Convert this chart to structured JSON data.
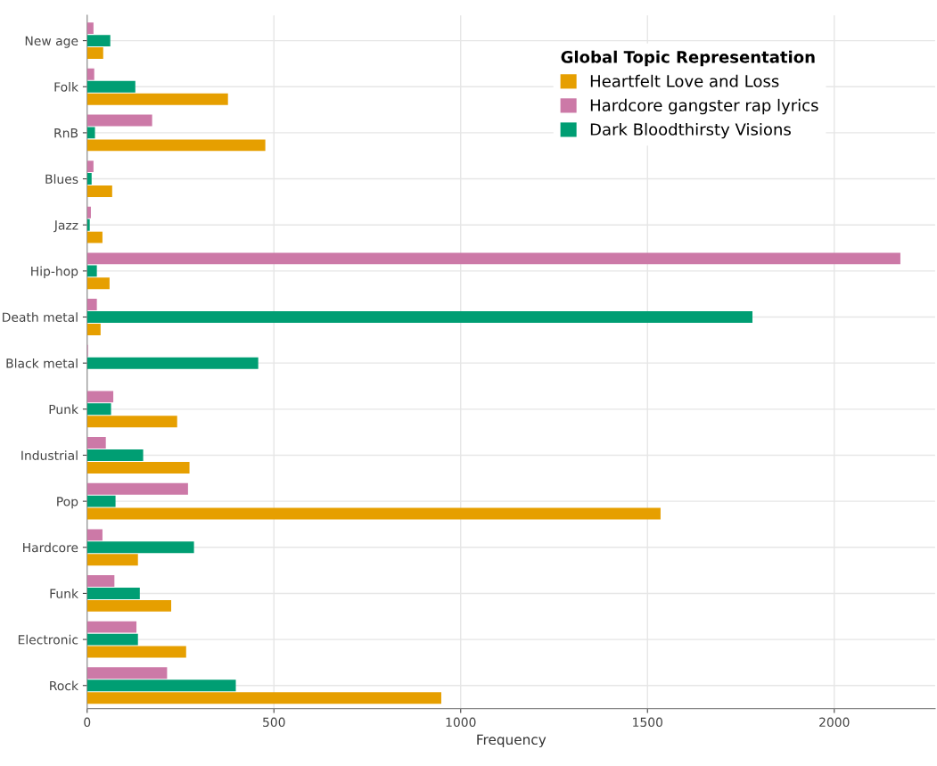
{
  "chart_data": {
    "type": "bar",
    "orientation": "horizontal",
    "xlabel": "Frequency",
    "legend_title": "Global Topic Representation",
    "categories": [
      "New age",
      "Folk",
      "RnB",
      "Blues",
      "Jazz",
      "Hip-hop",
      "Death metal",
      "Black metal",
      "Punk",
      "Industrial",
      "Pop",
      "Hardcore",
      "Funk",
      "Electronic",
      "Rock"
    ],
    "series": [
      {
        "name": "Heartfelt Love and Loss",
        "color": "#e69f00",
        "values": [
          43,
          377,
          477,
          67,
          41,
          60,
          36,
          0,
          241,
          274,
          1535,
          136,
          225,
          265,
          948
        ]
      },
      {
        "name": "Hardcore gangster rap lyrics",
        "color": "#cc79a7",
        "values": [
          17,
          19,
          174,
          17,
          10,
          2177,
          26,
          2,
          70,
          50,
          270,
          41,
          73,
          132,
          214
        ]
      },
      {
        "name": "Dark Bloodthirsty Visions",
        "color": "#009e73",
        "values": [
          62,
          129,
          21,
          12,
          7,
          26,
          1781,
          458,
          64,
          150,
          76,
          286,
          141,
          136,
          398
        ]
      }
    ],
    "xlim": [
      0,
      2270
    ],
    "xticks": [
      0,
      500,
      1000,
      1500,
      2000
    ],
    "grid": true,
    "legend": "top right"
  }
}
